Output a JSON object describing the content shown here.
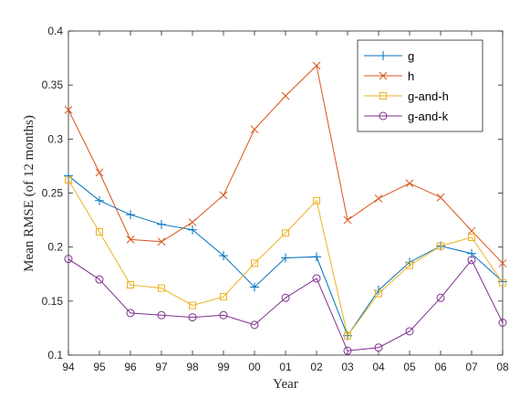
{
  "chart_data": {
    "type": "line",
    "categories": [
      "94",
      "95",
      "96",
      "97",
      "98",
      "99",
      "00",
      "01",
      "02",
      "03",
      "04",
      "05",
      "06",
      "07",
      "08"
    ],
    "xlabel": "Year",
    "ylabel": "Mean RMSE (of 12 months)",
    "ylim": [
      0.1,
      0.4
    ],
    "yticks": [
      "0.1",
      "0.15",
      "0.2",
      "0.25",
      "0.3",
      "0.35",
      "0.4"
    ],
    "grid": false,
    "legend_position": "top-right",
    "series": [
      {
        "name": "g",
        "color": "#0072BD",
        "marker": "plus",
        "values": [
          0.266,
          0.243,
          0.23,
          0.221,
          0.216,
          0.192,
          0.163,
          0.19,
          0.191,
          0.118,
          0.16,
          0.186,
          0.201,
          0.194,
          0.168
        ]
      },
      {
        "name": "h",
        "color": "#D95319",
        "marker": "x",
        "values": [
          0.327,
          0.269,
          0.207,
          0.205,
          0.223,
          0.248,
          0.309,
          0.34,
          0.368,
          0.225,
          0.245,
          0.259,
          0.246,
          0.215,
          0.185
        ]
      },
      {
        "name": "g-and-h",
        "color": "#EDB120",
        "marker": "square",
        "values": [
          0.262,
          0.214,
          0.165,
          0.162,
          0.146,
          0.154,
          0.185,
          0.213,
          0.243,
          0.118,
          0.157,
          0.183,
          0.201,
          0.209,
          0.167
        ]
      },
      {
        "name": "g-and-k",
        "color": "#7E2F8E",
        "marker": "circle",
        "values": [
          0.189,
          0.17,
          0.139,
          0.137,
          0.135,
          0.137,
          0.128,
          0.153,
          0.171,
          0.104,
          0.107,
          0.122,
          0.153,
          0.188,
          0.13
        ]
      }
    ]
  }
}
